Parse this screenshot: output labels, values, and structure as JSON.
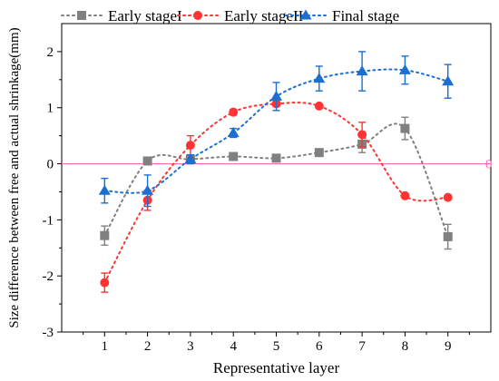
{
  "chart_data": {
    "type": "scatter",
    "title": "",
    "xlabel": "Representative layer",
    "ylabel": "Size difference between free and actual shrinkage(mm)",
    "x": [
      1,
      2,
      3,
      4,
      5,
      6,
      7,
      8,
      9
    ],
    "x_tick_labels": [
      "1",
      "2",
      "3",
      "4",
      "5",
      "6",
      "7",
      "8",
      "9"
    ],
    "xlim": [
      0,
      10
    ],
    "ylim": [
      -3,
      2.5
    ],
    "y_ticks": [
      -3,
      -2,
      -1,
      0,
      1,
      2
    ],
    "y_tick_labels": [
      "-3",
      "-2",
      "-1",
      "0",
      "1",
      "2"
    ],
    "grid": false,
    "legend_position": "top",
    "reference_line": {
      "y": 0,
      "label": "0",
      "color": "#ff69b4"
    },
    "series": [
      {
        "name": "Early stageI",
        "color": "#808080",
        "marker": "square",
        "line": "dotted",
        "values": [
          -1.28,
          0.05,
          0.08,
          0.13,
          0.1,
          0.2,
          0.35,
          0.63,
          -1.3
        ],
        "errors": [
          0.17,
          0.03,
          0.04,
          0.03,
          0.03,
          0.03,
          0.15,
          0.2,
          0.22
        ]
      },
      {
        "name": "Early stageII",
        "color": "#ff3333",
        "marker": "circle",
        "line": "dotted",
        "values": [
          -2.12,
          -0.65,
          0.33,
          0.92,
          1.07,
          1.03,
          0.52,
          -0.57,
          -0.6
        ],
        "errors": [
          0.17,
          0.18,
          0.17,
          0.05,
          0.05,
          0.03,
          0.22,
          0.03,
          0.03
        ]
      },
      {
        "name": "Final stage",
        "color": "#1a6fd1",
        "marker": "triangle",
        "line": "dotted",
        "values": [
          -0.48,
          -0.48,
          0.08,
          0.55,
          1.2,
          1.52,
          1.65,
          1.67,
          1.47
        ],
        "errors": [
          0.22,
          0.28,
          0.08,
          0.08,
          0.25,
          0.22,
          0.35,
          0.25,
          0.3
        ]
      }
    ]
  }
}
